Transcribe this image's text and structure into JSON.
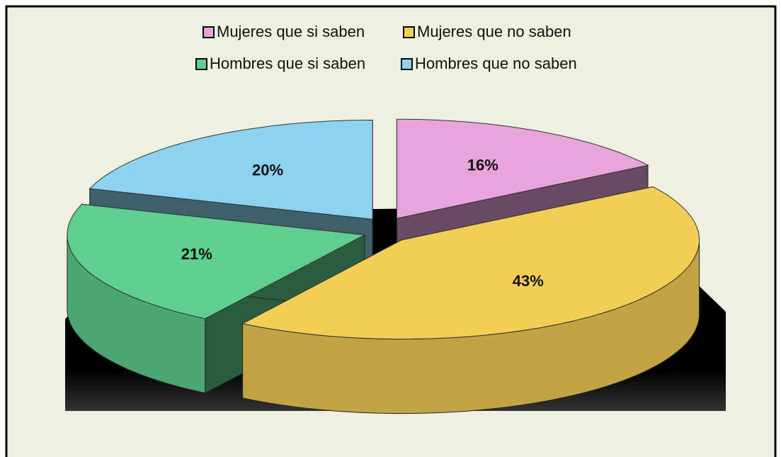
{
  "chart_data": {
    "type": "pie",
    "categories": [
      "Mujeres que si saben",
      "Mujeres que no saben",
      "Hombres que si saben",
      "Hombres que no saben"
    ],
    "values": [
      16,
      43,
      21,
      20
    ],
    "value_labels": [
      "16%",
      "43%",
      "21%",
      "20%"
    ],
    "colors": [
      "#e9a4dc",
      "#f4cd55",
      "#5ecf8e",
      "#8bd3f0"
    ],
    "legend": "top"
  }
}
